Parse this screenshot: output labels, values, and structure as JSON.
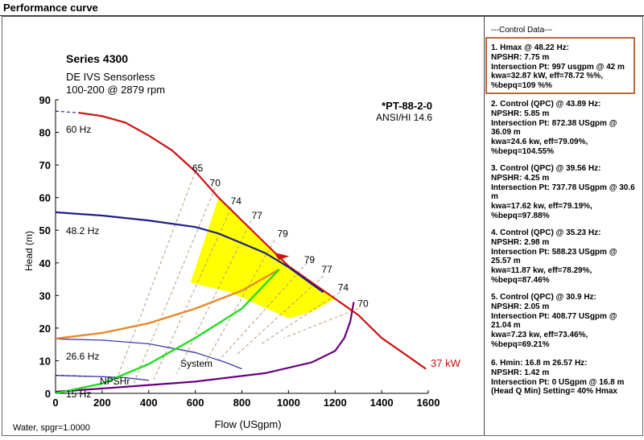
{
  "page_title": "Performance curve",
  "chart_data": {
    "type": "line",
    "title": "Series 4300",
    "subtitle_1": "DE IVS Sensorless",
    "subtitle_2": "100-200 @ 2879 rpm",
    "model": "*PT-88-2-0",
    "standard": "ANSI/HI 14.6",
    "xlabel": "Flow (USgpm)",
    "ylabel": "Head (m)",
    "xlim": [
      0,
      1600
    ],
    "ylim": [
      0,
      90
    ],
    "xticks": [
      0,
      200,
      400,
      600,
      800,
      1000,
      1200,
      1400,
      1600
    ],
    "yticks": [
      0,
      10,
      20,
      30,
      40,
      50,
      60,
      70,
      80,
      90
    ],
    "footnote": "Water, spgr=1.0000",
    "power_label": "37 kW",
    "grid": false,
    "speed_curves": [
      {
        "label": "60 Hz",
        "color": "#cc1111",
        "points": [
          [
            100,
            86
          ],
          [
            200,
            85
          ],
          [
            300,
            83
          ],
          [
            400,
            79
          ],
          [
            500,
            74.5
          ],
          [
            600,
            68
          ],
          [
            700,
            60
          ],
          [
            800,
            53
          ],
          [
            900,
            46
          ],
          [
            1000,
            39
          ],
          [
            1100,
            34
          ],
          [
            1200,
            29
          ],
          [
            1300,
            24
          ],
          [
            1400,
            17
          ],
          [
            1500,
            12
          ],
          [
            1590,
            7.5
          ]
        ]
      },
      {
        "label": "48.2 Hz",
        "color": "#1c1f8c",
        "points": [
          [
            0,
            55.5
          ],
          [
            200,
            54.5
          ],
          [
            400,
            53
          ],
          [
            600,
            51
          ],
          [
            700,
            49
          ],
          [
            800,
            46
          ],
          [
            900,
            43
          ],
          [
            1000,
            38.7
          ],
          [
            1100,
            33.5
          ],
          [
            1150,
            31
          ]
        ]
      },
      {
        "label": "26.6 Hz",
        "color": "#3a3aa8",
        "points": [
          [
            0,
            16.7
          ],
          [
            200,
            16.3
          ],
          [
            400,
            15.2
          ],
          [
            600,
            12.5
          ],
          [
            730,
            9.5
          ],
          [
            800,
            7.5
          ]
        ]
      },
      {
        "label": "15 Hz",
        "color": "#3a3aa8",
        "points": [
          [
            0,
            5.5
          ],
          [
            100,
            5.3
          ],
          [
            200,
            5.1
          ],
          [
            300,
            4.8
          ],
          [
            400,
            4.0
          ]
        ]
      }
    ],
    "system_curve": {
      "label": "System",
      "color": "#6a0080",
      "points": [
        [
          0,
          0.5
        ],
        [
          300,
          2.0
        ],
        [
          600,
          3.6
        ],
        [
          900,
          6.2
        ],
        [
          1100,
          9.5
        ],
        [
          1200,
          13
        ],
        [
          1240,
          17
        ],
        [
          1265,
          22
        ],
        [
          1280,
          28
        ]
      ]
    },
    "npsh_label": "NPSHr",
    "control_curves": [
      {
        "color": "#e88a2a",
        "points": [
          [
            0,
            16.8
          ],
          [
            200,
            18.5
          ],
          [
            400,
            21.5
          ],
          [
            600,
            26
          ],
          [
            800,
            31.5
          ],
          [
            960,
            38
          ]
        ]
      },
      {
        "color": "#22dd22",
        "points": [
          [
            0,
            0
          ],
          [
            200,
            3
          ],
          [
            400,
            9
          ],
          [
            600,
            17
          ],
          [
            800,
            26
          ],
          [
            960,
            38
          ]
        ]
      }
    ],
    "operating_point": {
      "flow": 997,
      "head": 42
    },
    "efficiency_labels": [
      {
        "text": "65",
        "flow": 610,
        "head": 68
      },
      {
        "text": "70",
        "flow": 685,
        "head": 63.5
      },
      {
        "text": "74",
        "flow": 775,
        "head": 58
      },
      {
        "text": "77",
        "flow": 865,
        "head": 53.5
      },
      {
        "text": "79",
        "flow": 975,
        "head": 48
      },
      {
        "text": "79",
        "flow": 1090,
        "head": 40
      },
      {
        "text": "77",
        "flow": 1165,
        "head": 37
      },
      {
        "text": "74",
        "flow": 1235,
        "head": 31.5
      },
      {
        "text": "70",
        "flow": 1320,
        "head": 26.5
      }
    ],
    "efficiency_lines": [
      {
        "from": [
          600,
          68
        ],
        "to": [
          250,
          2
        ]
      },
      {
        "from": [
          685,
          63
        ],
        "to": [
          330,
          2
        ]
      },
      {
        "from": [
          755,
          57
        ],
        "to": [
          420,
          4
        ]
      },
      {
        "from": [
          840,
          53
        ],
        "to": [
          520,
          6
        ]
      },
      {
        "from": [
          940,
          47
        ],
        "to": [
          640,
          9
        ]
      },
      {
        "from": [
          1080,
          40
        ],
        "to": [
          700,
          10
        ]
      },
      {
        "from": [
          1150,
          36
        ],
        "to": [
          780,
          12
        ]
      },
      {
        "from": [
          1220,
          31
        ],
        "to": [
          880,
          15
        ]
      },
      {
        "from": [
          1300,
          26
        ],
        "to": [
          980,
          17
        ]
      }
    ],
    "preferred_region": {
      "color": "#ffff00",
      "points": [
        [
          700,
          60
        ],
        [
          800,
          53
        ],
        [
          900,
          46
        ],
        [
          1000,
          39
        ],
        [
          1100,
          34
        ],
        [
          1200,
          29
        ],
        [
          1100,
          25
        ],
        [
          1000,
          23
        ],
        [
          750,
          31
        ],
        [
          580,
          34
        ]
      ]
    }
  },
  "control_panel": {
    "header": "---Control Data---",
    "blocks": [
      {
        "lines": [
          "1. Hmax @ 48.22 Hz:",
          "NPSHR: 7.75 m",
          "Intersection Pt: 997 usgpm @ 42 m",
          "kwa=32.87 kW, eff=78.72 %%,",
          "%bepq=109 %%"
        ]
      },
      {
        "lines": [
          "2. Control (QPC) @ 43.89 Hz:",
          "NPSHR: 5.85 m",
          "Intersection Pt: 872.38 USgpm @ 36.09 m",
          "kwa=24.6 kw, eff=79.09%,",
          "%bepq=104.55%"
        ]
      },
      {
        "lines": [
          "3. Control (QPC) @ 39.56 Hz:",
          "NPSHR: 4.25 m",
          "Intersection Pt: 737.78 USgpm @ 30.6 m",
          "kwa=17.62 kw, eff=79.19%,",
          "%bepq=97.88%"
        ]
      },
      {
        "lines": [
          "4. Control (QPC) @ 35.23 Hz:",
          "NPSHR: 2.98 m",
          "Intersection Pt: 588.23 USgpm @ 25.57 m",
          "kwa=11.87 kw, eff=78.29%,",
          "%bepq=87.46%"
        ]
      },
      {
        "lines": [
          "5. Control (QPC) @ 30.9 Hz:",
          "NPSHR: 2.05 m",
          "Intersection Pt: 408.77 USgpm @ 21.04 m",
          "kwa=7.23 kw, eff=73.46%,",
          "%bepq=69.21%"
        ]
      },
      {
        "lines": [
          "6. Hmin: 16.8 m 26.57 Hz:",
          "NPSHR: 1.42 m",
          "Intersection Pt: 0 USgpm @ 16.8 m",
          "(Head Q Min) Setting= 40% Hmax"
        ]
      }
    ]
  }
}
